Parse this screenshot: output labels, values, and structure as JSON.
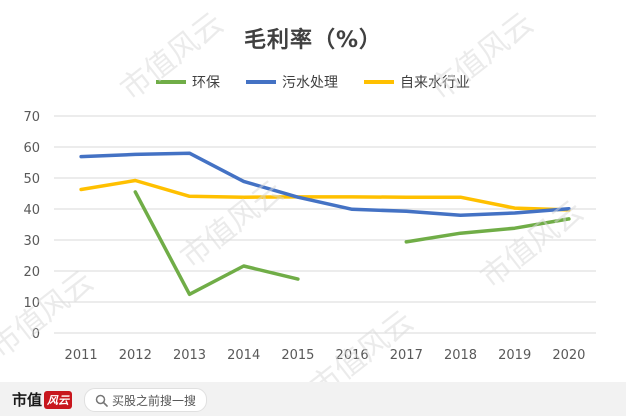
{
  "watermark_text": "市值风云",
  "footer": {
    "brand_name": "市值",
    "brand_tag": "风云",
    "search_text": "买股之前搜一搜",
    "search_icon": "search-icon"
  },
  "colors": {
    "环保": "#70ad47",
    "污水处理": "#4472c4",
    "自来水行业": "#ffc000",
    "grid": "#d9d9d9",
    "axis_text": "#595959"
  },
  "chart_data": {
    "type": "line",
    "title": "毛利率（%）",
    "xlabel": "",
    "ylabel": "",
    "x": [
      "2011",
      "2012",
      "2013",
      "2014",
      "2015",
      "2016",
      "2017",
      "2018",
      "2019",
      "2020"
    ],
    "ylim": [
      0,
      70
    ],
    "yticks": [
      0,
      10,
      20,
      30,
      40,
      50,
      60,
      70
    ],
    "grid": true,
    "legend_position": "top",
    "series": [
      {
        "name": "环保",
        "values": [
          null,
          45.5,
          12.5,
          21.6,
          17.4,
          null,
          29.4,
          32.2,
          33.8,
          36.8
        ]
      },
      {
        "name": "污水处理",
        "values": [
          56.9,
          57.6,
          58.0,
          48.9,
          43.8,
          39.9,
          39.3,
          38.0,
          38.7,
          40.1
        ]
      },
      {
        "name": "自来水行业",
        "values": [
          46.3,
          49.2,
          44.1,
          43.8,
          43.9,
          43.9,
          43.8,
          43.8,
          40.3,
          39.7
        ]
      }
    ]
  }
}
